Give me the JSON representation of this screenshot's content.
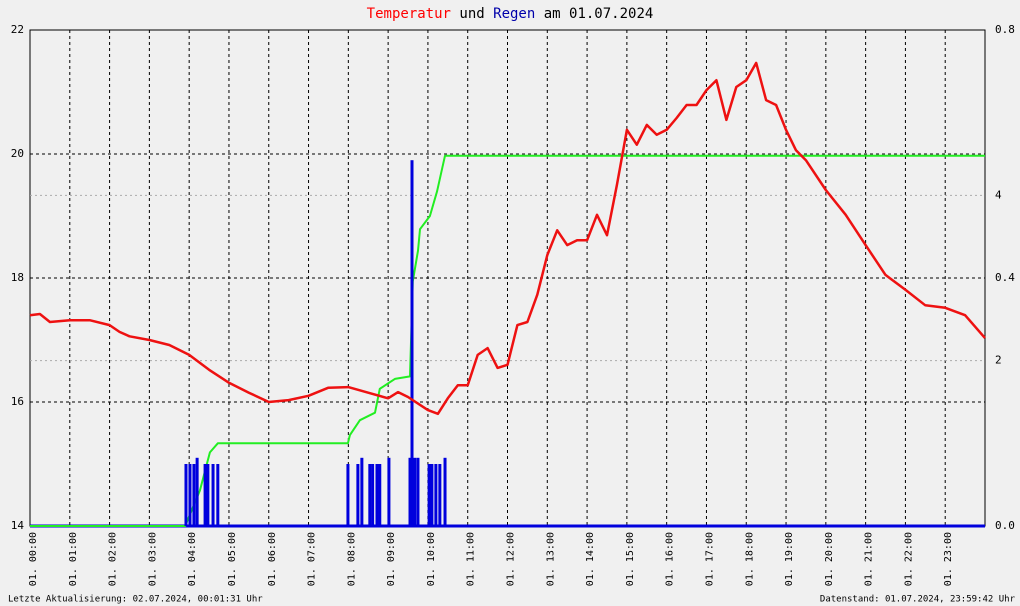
{
  "chart_data": {
    "type": "line",
    "title": [
      "Temperatur",
      "und",
      "Regen",
      "am 01.07.2024"
    ],
    "title_colors": [
      "#ff0000",
      "#000000",
      "#0000aa",
      "#000000"
    ],
    "xlim": [
      0,
      24
    ],
    "xticks": [
      {
        "value": 0,
        "label": "01. 00:00"
      },
      {
        "value": 1,
        "label": "01. 01:00"
      },
      {
        "value": 2,
        "label": "01. 02:00"
      },
      {
        "value": 3,
        "label": "01. 03:00"
      },
      {
        "value": 4,
        "label": "01. 04:00"
      },
      {
        "value": 5,
        "label": "01. 05:00"
      },
      {
        "value": 6,
        "label": "01. 06:00"
      },
      {
        "value": 7,
        "label": "01. 07:00"
      },
      {
        "value": 8,
        "label": "01. 08:00"
      },
      {
        "value": 9,
        "label": "01. 09:00"
      },
      {
        "value": 10,
        "label": "01. 10:00"
      },
      {
        "value": 11,
        "label": "01. 11:00"
      },
      {
        "value": 12,
        "label": "01. 12:00"
      },
      {
        "value": 13,
        "label": "01. 13:00"
      },
      {
        "value": 14,
        "label": "01. 14:00"
      },
      {
        "value": 15,
        "label": "01. 15:00"
      },
      {
        "value": 16,
        "label": "01. 16:00"
      },
      {
        "value": 17,
        "label": "01. 17:00"
      },
      {
        "value": 18,
        "label": "01. 18:00"
      },
      {
        "value": 19,
        "label": "01. 19:00"
      },
      {
        "value": 20,
        "label": "01. 20:00"
      },
      {
        "value": 21,
        "label": "01. 21:00"
      },
      {
        "value": 22,
        "label": "01. 22:00"
      },
      {
        "value": 23,
        "label": "01. 23:00"
      }
    ],
    "ylim": [
      14,
      22
    ],
    "yticks": [
      14,
      16,
      18,
      20,
      22
    ],
    "y2lim": [
      0,
      0.8
    ],
    "y2ticks": [
      {
        "value": 0,
        "label": "0.0"
      },
      0.4,
      0.8
    ],
    "y3lim": [
      0,
      6
    ],
    "y3ticks": [
      2,
      4
    ],
    "grid": true,
    "series": [
      {
        "color": "#ee1111",
        "axis": "y",
        "x": [
          0,
          0.25,
          0.5,
          1,
          1.5,
          2,
          2.25,
          2.5,
          3,
          3.5,
          4,
          4.5,
          5,
          5.5,
          6,
          6.5,
          7,
          7.5,
          8,
          8.5,
          9,
          9.25,
          9.5,
          10,
          10.25,
          10.5,
          10.75,
          11,
          11.25,
          11.5,
          11.75,
          12,
          12.25,
          12.5,
          12.75,
          13,
          13.25,
          13.5,
          13.75,
          14,
          14.25,
          14.5,
          14.75,
          15,
          15.25,
          15.5,
          15.75,
          16,
          16.25,
          16.5,
          16.75,
          17,
          17.25,
          17.5,
          17.75,
          18,
          18.25,
          18.5,
          18.75,
          19,
          19.25,
          19.5,
          20,
          20.5,
          21,
          21.5,
          22,
          22.5,
          23,
          23.5,
          24
        ],
        "values": [
          17.4,
          17.42,
          17.29,
          17.32,
          17.32,
          17.24,
          17.13,
          17.06,
          17.0,
          16.92,
          16.76,
          16.52,
          16.31,
          16.15,
          16.0,
          16.03,
          16.1,
          16.23,
          16.24,
          16.15,
          16.06,
          16.16,
          16.08,
          15.87,
          15.81,
          16.06,
          16.27,
          16.27,
          16.76,
          16.87,
          16.55,
          16.6,
          17.24,
          17.29,
          17.73,
          18.37,
          18.77,
          18.53,
          18.61,
          18.61,
          19.02,
          18.69,
          19.5,
          20.39,
          20.15,
          20.47,
          20.31,
          20.39,
          20.58,
          20.79,
          20.79,
          21.03,
          21.19,
          20.55,
          21.08,
          21.19,
          21.47,
          20.87,
          20.79,
          20.39,
          20.06,
          19.9,
          19.42,
          19.02,
          18.53,
          18.05,
          17.81,
          17.56,
          17.52,
          17.4,
          17.03
        ]
      },
      {
        "color": "#22ee22",
        "axis": "y3",
        "x": [
          0,
          3.9,
          4.27,
          4.52,
          4.72,
          7.99,
          8.04,
          8.29,
          8.67,
          8.79,
          9.17,
          9.55,
          9.62,
          9.75,
          9.8,
          10.05,
          10.23,
          10.43,
          24
        ],
        "values": [
          0,
          0,
          0.43,
          0.89,
          1.0,
          1.0,
          1.1,
          1.28,
          1.37,
          1.66,
          1.78,
          1.81,
          2.96,
          3.33,
          3.59,
          3.75,
          4.05,
          4.48,
          4.48
        ]
      },
      {
        "color": "#0000dd",
        "axis": "y2",
        "type": "bar",
        "x": [
          3.92,
          4.02,
          4.12,
          4.2,
          4.4,
          4.47,
          4.6,
          4.72,
          7.99,
          8.24,
          8.34,
          8.54,
          8.61,
          8.72,
          8.79,
          9.02,
          9.55,
          9.6,
          9.67,
          9.75,
          10.03,
          10.1,
          10.2,
          10.3,
          10.43
        ],
        "values": [
          0.1,
          0.1,
          0.1,
          0.11,
          0.1,
          0.1,
          0.1,
          0.1,
          0.1,
          0.1,
          0.11,
          0.1,
          0.1,
          0.1,
          0.1,
          0.11,
          0.11,
          0.59,
          0.11,
          0.11,
          0.1,
          0.1,
          0.1,
          0.1,
          0.11
        ]
      }
    ],
    "footer_left": "Letzte Aktualisierung: 02.07.2024, 00:01:31 Uhr",
    "footer_right": "Datenstand: 01.07.2024, 23:59:42 Uhr"
  }
}
